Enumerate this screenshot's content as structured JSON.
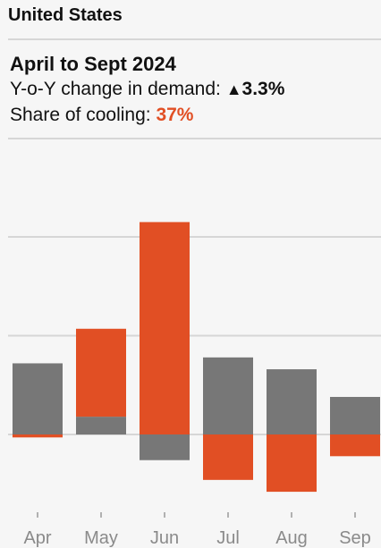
{
  "header": {
    "region": "United States",
    "period": "April to Sept 2024",
    "demand_label": "Y-o-Y change in demand: ",
    "demand_arrow": "▲",
    "demand_value": "3.3%",
    "cooling_label": "Share of cooling: ",
    "cooling_value": "37%"
  },
  "colors": {
    "cooling": "#e14f24",
    "other": "#777777",
    "grid": "#d6d6d6",
    "background": "#f6f6f6"
  },
  "chart_data": {
    "type": "bar",
    "stacked": true,
    "categories": [
      "Apr",
      "May",
      "Jun",
      "Jul",
      "Aug",
      "Sep"
    ],
    "series": [
      {
        "values": [
          7.2,
          1.8,
          -2.6,
          7.8,
          6.6,
          3.8
        ]
      },
      {
        "values": [
          -0.3,
          8.9,
          21.5,
          -4.6,
          -5.8,
          -2.2
        ]
      }
    ],
    "ylim": [
      -6.5,
      21.5
    ],
    "yticks": [
      0,
      10,
      20
    ],
    "grid": true,
    "legend": "none"
  }
}
